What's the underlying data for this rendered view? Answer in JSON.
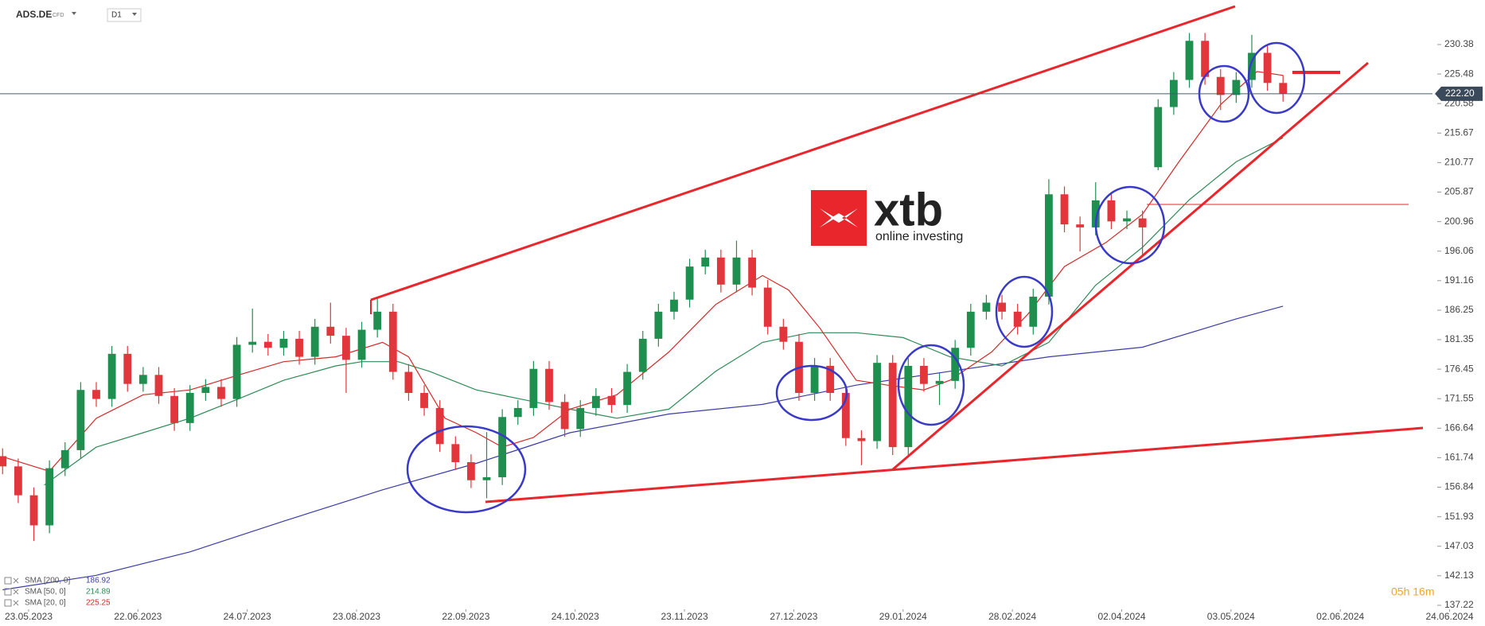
{
  "chart_data": {
    "type": "candlestick",
    "symbol": "ADS.DE",
    "instrument": "CFD",
    "timeframe": "D1",
    "logo": "xtb",
    "logo_tagline": "online investing",
    "countdown": "05h 16m",
    "up_color": "#1f8f4f",
    "down_color": "#e2363c",
    "x": [
      0,
      3,
      6,
      9,
      12,
      15,
      18,
      21,
      24,
      27,
      30,
      33,
      36,
      39,
      42,
      45,
      48,
      51,
      54,
      57,
      60,
      63,
      66,
      69,
      72,
      75,
      78,
      81,
      84,
      87,
      90,
      93,
      96,
      99,
      102,
      105,
      108,
      111,
      114,
      117,
      120,
      123,
      126,
      129,
      132,
      135,
      138,
      141,
      144,
      147,
      150,
      153,
      156,
      159,
      162,
      165,
      168,
      171,
      174,
      177,
      180,
      183,
      186,
      189,
      192,
      195,
      198,
      201,
      204,
      207,
      210,
      213,
      216,
      219,
      222,
      225,
      228,
      231,
      234,
      237,
      240,
      243,
      246
    ],
    "open": [
      162.0,
      160.3,
      155.5,
      150.5,
      160.0,
      163.0,
      173.0,
      171.5,
      179.0,
      174.0,
      175.5,
      172.0,
      167.5,
      172.5,
      173.5,
      171.5,
      180.5,
      181.0,
      180.0,
      181.5,
      178.5,
      183.5,
      182.0,
      178.0,
      183.0,
      186.0,
      176.0,
      172.5,
      170.0,
      164.0,
      161.0,
      158.0,
      158.5,
      168.5,
      170.0,
      176.5,
      171.0,
      166.5,
      170.0,
      172.0,
      170.5,
      176.0,
      181.5,
      186.0,
      188.0,
      193.5,
      195.0,
      190.5,
      195.0,
      190.0,
      183.5,
      181.0,
      172.5,
      177.0,
      172.5,
      165.0,
      164.5,
      177.5,
      163.5,
      177.0,
      174.0,
      174.5,
      180.0,
      186.0,
      187.5,
      186.0,
      183.5,
      188.5,
      205.5,
      200.5,
      200.0,
      204.5,
      201.0,
      201.5,
      210.0,
      220.0,
      224.5,
      231.0,
      225.0,
      222.0,
      224.5,
      229.0,
      224.0
    ],
    "high": [
      163.3,
      161.6,
      156.8,
      161.3,
      164.3,
      174.3,
      174.3,
      180.3,
      180.3,
      176.8,
      176.8,
      173.3,
      173.8,
      174.8,
      174.8,
      181.8,
      186.5,
      182.3,
      182.8,
      182.8,
      184.8,
      187.5,
      183.3,
      184.3,
      188.2,
      187.3,
      177.3,
      173.8,
      171.3,
      165.3,
      162.3,
      166.0,
      169.8,
      171.3,
      177.8,
      177.8,
      172.3,
      171.3,
      173.3,
      173.3,
      177.3,
      182.8,
      187.3,
      189.3,
      194.8,
      196.3,
      196.3,
      197.8,
      196.3,
      191.3,
      184.8,
      182.3,
      178.3,
      178.3,
      173.8,
      166.3,
      178.8,
      178.8,
      178.3,
      178.3,
      175.8,
      181.3,
      187.3,
      188.8,
      188.8,
      187.3,
      189.8,
      208.0,
      206.8,
      201.8,
      207.5,
      205.8,
      202.8,
      202.8,
      221.3,
      225.8,
      232.3,
      232.3,
      226.3,
      225.8,
      232.0,
      230.3,
      225.3
    ],
    "low": [
      159.0,
      154.2,
      147.9,
      149.2,
      158.7,
      161.7,
      170.2,
      170.2,
      172.7,
      172.7,
      170.7,
      166.2,
      166.2,
      171.2,
      170.2,
      170.2,
      179.2,
      178.7,
      178.7,
      177.2,
      177.2,
      180.7,
      172.5,
      176.7,
      181.7,
      174.7,
      171.2,
      168.7,
      162.7,
      159.7,
      156.7,
      155.0,
      157.2,
      167.2,
      168.7,
      169.7,
      165.2,
      165.2,
      168.7,
      169.2,
      169.2,
      174.7,
      180.2,
      184.7,
      186.7,
      192.2,
      189.2,
      189.2,
      188.7,
      182.2,
      179.7,
      171.2,
      171.2,
      171.2,
      163.7,
      160.5,
      163.2,
      162.2,
      162.2,
      172.7,
      170.5,
      173.2,
      178.7,
      184.7,
      184.7,
      182.2,
      182.2,
      187.2,
      199.2,
      196.0,
      198.7,
      199.7,
      199.7,
      195.5,
      209.5,
      218.7,
      223.2,
      223.7,
      219.5,
      220.7,
      223.2,
      222.7,
      220.9
    ],
    "close": [
      160.3,
      155.5,
      150.5,
      160.0,
      163.0,
      173.0,
      171.5,
      179.0,
      174.0,
      175.5,
      172.0,
      167.5,
      172.5,
      173.5,
      171.5,
      180.5,
      181.0,
      180.0,
      181.5,
      178.5,
      183.5,
      182.0,
      178.0,
      183.0,
      186.0,
      176.0,
      172.5,
      170.0,
      164.0,
      161.0,
      158.0,
      158.5,
      168.5,
      170.0,
      176.5,
      171.0,
      166.5,
      170.0,
      172.0,
      170.5,
      176.0,
      181.5,
      186.0,
      188.0,
      193.5,
      195.0,
      190.5,
      195.0,
      190.0,
      183.5,
      181.0,
      172.5,
      177.0,
      172.5,
      165.0,
      164.5,
      177.5,
      163.5,
      177.0,
      174.0,
      174.5,
      180.0,
      186.0,
      187.5,
      186.0,
      183.5,
      188.5,
      205.5,
      200.5,
      200.0,
      204.5,
      201.0,
      201.5,
      200.0,
      220.0,
      224.5,
      231.0,
      225.0,
      222.0,
      224.5,
      229.0,
      224.0,
      222.2
    ],
    "series": [
      {
        "name": "SMA [200, 0]",
        "legend_value": 186.92,
        "color": "#3c3ca8",
        "x": [
          0,
          18,
          36,
          54,
          73,
          91,
          109,
          128,
          146,
          155,
          164,
          182,
          201,
          219,
          237,
          246
        ],
        "values": [
          139.8,
          142.2,
          146.1,
          151.2,
          156.4,
          160.8,
          165.9,
          169.0,
          170.6,
          172.2,
          173.8,
          176.1,
          178.5,
          180.1,
          184.8,
          186.92
        ]
      },
      {
        "name": "SMA [50, 0]",
        "legend_value": 214.89,
        "color": "#2e8b57",
        "x": [
          8,
          18,
          27,
          36,
          45,
          54,
          64,
          69,
          76,
          82,
          91,
          100,
          109,
          118,
          128,
          137,
          146,
          155,
          164,
          173,
          182,
          192,
          201,
          210,
          219,
          228,
          237,
          246
        ],
        "values": [
          157.2,
          163.5,
          165.9,
          168.3,
          171.4,
          174.6,
          177.0,
          177.7,
          177.7,
          176.1,
          173.0,
          171.4,
          169.8,
          168.3,
          169.8,
          176.1,
          180.9,
          182.5,
          182.5,
          181.7,
          178.5,
          177.0,
          180.9,
          190.4,
          196.7,
          204.6,
          210.9,
          214.89
        ]
      },
      {
        "name": "SMA [20, 0]",
        "legend_value": 225.25,
        "color": "#d42a2a",
        "x": [
          0,
          9,
          18,
          27,
          36,
          45,
          54,
          64,
          73,
          78,
          85,
          91,
          96,
          102,
          109,
          118,
          128,
          137,
          146,
          151,
          157,
          164,
          170,
          177,
          182,
          190,
          197,
          204,
          212,
          219,
          226,
          234,
          241,
          246
        ],
        "values": [
          161.9,
          159.5,
          168.3,
          172.2,
          173.0,
          175.4,
          177.7,
          178.5,
          180.9,
          178.5,
          168.3,
          165.9,
          163.5,
          165.1,
          169.8,
          172.2,
          179.3,
          187.2,
          192.0,
          189.6,
          183.3,
          174.6,
          173.8,
          173.0,
          174.6,
          179.3,
          185.6,
          193.5,
          197.5,
          202.2,
          210.9,
          220.4,
          225.9,
          225.25
        ]
      }
    ],
    "price_line": {
      "value": 222.2,
      "label": "222.20"
    },
    "xlim": [
      -0.5,
      284.8
    ],
    "ylim": [
      136.69,
      237.78
    ],
    "yticks": [
      230.38,
      225.48,
      220.58,
      215.67,
      210.77,
      205.87,
      200.96,
      196.06,
      191.16,
      186.25,
      181.35,
      176.45,
      171.55,
      166.64,
      161.74,
      156.84,
      151.93,
      147.03,
      142.13,
      137.22
    ],
    "xticks": [
      {
        "value": 5,
        "label": "23.05.2023"
      },
      {
        "value": 26,
        "label": "22.06.2023"
      },
      {
        "value": 47,
        "label": "24.07.2023"
      },
      {
        "value": 68,
        "label": "23.08.2023"
      },
      {
        "value": 89,
        "label": "22.09.2023"
      },
      {
        "value": 110,
        "label": "24.10.2023"
      },
      {
        "value": 131,
        "label": "23.11.2023"
      },
      {
        "value": 152,
        "label": "27.12.2023"
      },
      {
        "value": 173,
        "label": "29.01.2024"
      },
      {
        "value": 194,
        "label": "28.02.2024"
      },
      {
        "value": 215,
        "label": "02.04.2024"
      },
      {
        "value": 236,
        "label": "03.05.2024"
      },
      {
        "value": 257,
        "label": "02.06.2024"
      },
      {
        "value": 278,
        "label": "24.06.2024"
      }
    ]
  }
}
